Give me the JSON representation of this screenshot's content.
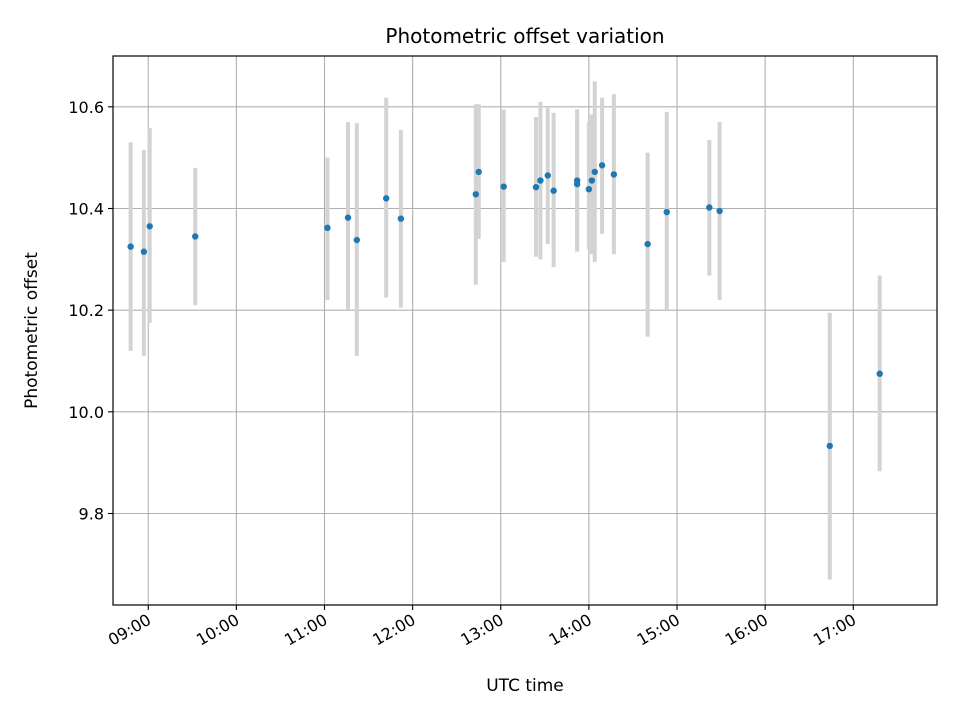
{
  "chart_data": {
    "type": "scatter",
    "title": "Photometric offset variation",
    "xlabel": "UTC time",
    "ylabel": "Photometric offset",
    "x_ticks": [
      "09:00",
      "10:00",
      "11:00",
      "12:00",
      "13:00",
      "14:00",
      "15:00",
      "16:00",
      "17:00"
    ],
    "y_ticks": [
      "9.8",
      "10.0",
      "10.2",
      "10.4",
      "10.6"
    ],
    "xlim": [
      "08:36",
      "17:57"
    ],
    "ylim": [
      9.62,
      10.7
    ],
    "grid": true,
    "colors": {
      "point": "#1f77b4",
      "errorbar": "#d3d3d3",
      "grid": "#b0b0b0"
    },
    "points": [
      {
        "x": "08:48",
        "y": 10.325,
        "err_low": 10.12,
        "err_high": 10.53
      },
      {
        "x": "08:57",
        "y": 10.315,
        "err_low": 10.11,
        "err_high": 10.515
      },
      {
        "x": "09:01",
        "y": 10.365,
        "err_low": 10.175,
        "err_high": 10.558
      },
      {
        "x": "09:32",
        "y": 10.345,
        "err_low": 10.21,
        "err_high": 10.48
      },
      {
        "x": "11:02",
        "y": 10.362,
        "err_low": 10.22,
        "err_high": 10.5
      },
      {
        "x": "11:16",
        "y": 10.382,
        "err_low": 10.2,
        "err_high": 10.57
      },
      {
        "x": "11:22",
        "y": 10.338,
        "err_low": 10.11,
        "err_high": 10.568
      },
      {
        "x": "11:42",
        "y": 10.42,
        "err_low": 10.225,
        "err_high": 10.618
      },
      {
        "x": "11:52",
        "y": 10.38,
        "err_low": 10.205,
        "err_high": 10.555
      },
      {
        "x": "12:43",
        "y": 10.428,
        "err_low": 10.25,
        "err_high": 10.605
      },
      {
        "x": "12:45",
        "y": 10.472,
        "err_low": 10.34,
        "err_high": 10.605
      },
      {
        "x": "13:02",
        "y": 10.443,
        "err_low": 10.295,
        "err_high": 10.595
      },
      {
        "x": "13:24",
        "y": 10.442,
        "err_low": 10.305,
        "err_high": 10.58
      },
      {
        "x": "13:27",
        "y": 10.455,
        "err_low": 10.3,
        "err_high": 10.61
      },
      {
        "x": "13:32",
        "y": 10.465,
        "err_low": 10.33,
        "err_high": 10.598
      },
      {
        "x": "13:36",
        "y": 10.435,
        "err_low": 10.285,
        "err_high": 10.588
      },
      {
        "x": "13:52",
        "y": 10.455,
        "err_low": 10.315,
        "err_high": 10.595
      },
      {
        "x": "13:52",
        "y": 10.448,
        "err_low": 10.32,
        "err_high": 10.58
      },
      {
        "x": "14:00",
        "y": 10.438,
        "err_low": 10.32,
        "err_high": 10.57
      },
      {
        "x": "14:02",
        "y": 10.455,
        "err_low": 10.31,
        "err_high": 10.585
      },
      {
        "x": "14:04",
        "y": 10.472,
        "err_low": 10.295,
        "err_high": 10.65
      },
      {
        "x": "14:09",
        "y": 10.485,
        "err_low": 10.35,
        "err_high": 10.618
      },
      {
        "x": "14:17",
        "y": 10.467,
        "err_low": 10.31,
        "err_high": 10.625
      },
      {
        "x": "14:40",
        "y": 10.33,
        "err_low": 10.148,
        "err_high": 10.51
      },
      {
        "x": "14:53",
        "y": 10.393,
        "err_low": 10.2,
        "err_high": 10.59
      },
      {
        "x": "15:22",
        "y": 10.402,
        "err_low": 10.268,
        "err_high": 10.535
      },
      {
        "x": "15:29",
        "y": 10.395,
        "err_low": 10.22,
        "err_high": 10.57
      },
      {
        "x": "16:44",
        "y": 9.933,
        "err_low": 9.67,
        "err_high": 10.195
      },
      {
        "x": "17:18",
        "y": 10.075,
        "err_low": 9.883,
        "err_high": 10.268
      }
    ]
  }
}
